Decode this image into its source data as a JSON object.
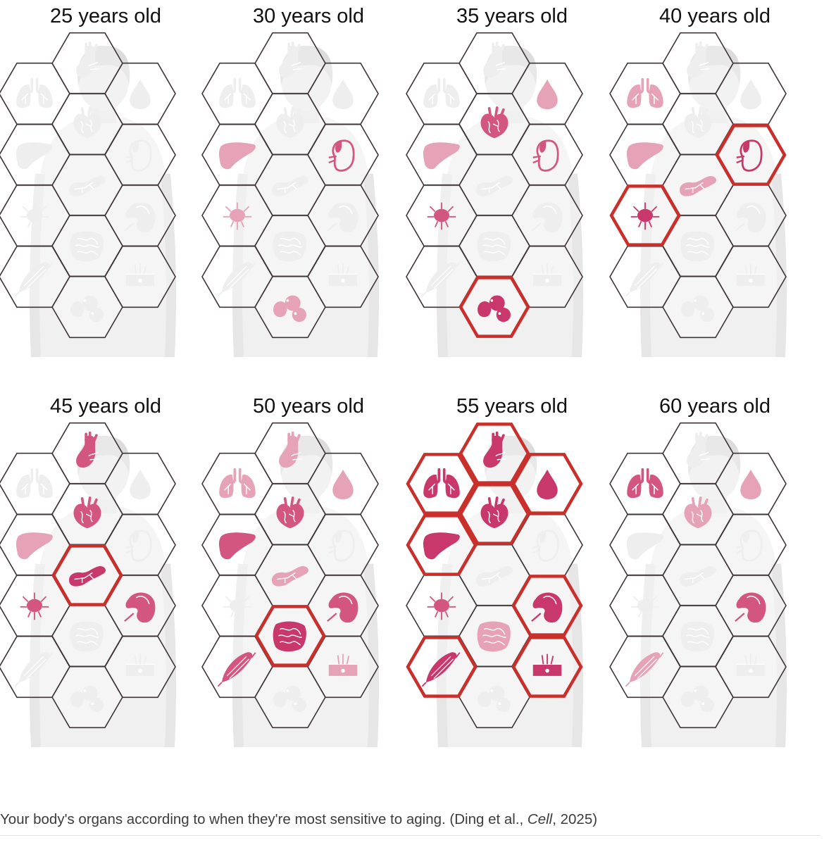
{
  "colors": {
    "hex_border": "#3f3537",
    "highlight_border": "#c9302c",
    "organ_strong": "#c8386a",
    "organ_medium": "#d2567f",
    "organ_light": "#e6a3b7",
    "organ_faint": "#eeeeee",
    "body_silhouette": "#d9d9d9"
  },
  "organ_slots": [
    {
      "slot": "top",
      "icon": "aorta-icon"
    },
    {
      "slot": "left-1",
      "icon": "lung-icon"
    },
    {
      "slot": "center-1",
      "icon": "heart-icon"
    },
    {
      "slot": "right-1",
      "icon": "blood-drop-icon"
    },
    {
      "slot": "left-2",
      "icon": "liver-icon"
    },
    {
      "slot": "center-2",
      "icon": "pancreas-icon"
    },
    {
      "slot": "right-2",
      "icon": "kidney-icon"
    },
    {
      "slot": "left-3",
      "icon": "adrenal-gland-icon"
    },
    {
      "slot": "center-3",
      "icon": "intestine-icon"
    },
    {
      "slot": "right-3",
      "icon": "spleen-icon"
    },
    {
      "slot": "left-4",
      "icon": "muscle-icon"
    },
    {
      "slot": "bottom",
      "icon": "lymph-node-icon"
    },
    {
      "slot": "right-4",
      "icon": "skin-icon"
    }
  ],
  "panels": [
    {
      "title": "25 years old",
      "organs": {
        "top": "faint",
        "left-1": "faint",
        "center-1": "faint",
        "right-1": "faint",
        "left-2": "faint",
        "center-2": "faint",
        "right-2": "faint",
        "left-3": "faint",
        "center-3": "faint",
        "right-3": "faint",
        "left-4": "faint",
        "bottom": "faint",
        "right-4": "faint"
      },
      "highlighted": []
    },
    {
      "title": "30 years old",
      "organs": {
        "top": "faint",
        "left-1": "faint",
        "center-1": "faint",
        "right-1": "faint",
        "left-2": "light",
        "center-2": "faint",
        "right-2": "medium",
        "left-3": "light",
        "center-3": "faint",
        "right-3": "faint",
        "left-4": "faint",
        "bottom": "light",
        "right-4": "faint"
      },
      "highlighted": []
    },
    {
      "title": "35 years old",
      "organs": {
        "top": "faint",
        "left-1": "faint",
        "center-1": "medium",
        "right-1": "light",
        "left-2": "light",
        "center-2": "faint",
        "right-2": "medium",
        "left-3": "medium",
        "center-3": "faint",
        "right-3": "faint",
        "left-4": "faint",
        "bottom": "strong",
        "right-4": "faint"
      },
      "highlighted": [
        "bottom"
      ]
    },
    {
      "title": "40 years old",
      "organs": {
        "top": "faint",
        "left-1": "light",
        "center-1": "faint",
        "right-1": "faint",
        "left-2": "light",
        "center-2": "light",
        "right-2": "strong",
        "left-3": "strong",
        "center-3": "faint",
        "right-3": "faint",
        "left-4": "faint",
        "bottom": "faint",
        "right-4": "faint"
      },
      "highlighted": [
        "right-2",
        "left-3"
      ]
    },
    {
      "title": "45 years old",
      "organs": {
        "top": "medium",
        "left-1": "faint",
        "center-1": "medium",
        "right-1": "faint",
        "left-2": "light",
        "center-2": "strong",
        "right-2": "faint",
        "left-3": "medium",
        "center-3": "faint",
        "right-3": "medium",
        "left-4": "faint",
        "bottom": "faint",
        "right-4": "faint"
      },
      "highlighted": [
        "center-2"
      ]
    },
    {
      "title": "50 years old",
      "organs": {
        "top": "light",
        "left-1": "light",
        "center-1": "medium",
        "right-1": "light",
        "left-2": "medium",
        "center-2": "light",
        "right-2": "faint",
        "left-3": "faint",
        "center-3": "strong",
        "right-3": "medium",
        "left-4": "medium",
        "bottom": "faint",
        "right-4": "light"
      },
      "highlighted": [
        "center-3"
      ]
    },
    {
      "title": "55 years old",
      "organs": {
        "top": "strong",
        "left-1": "strong",
        "center-1": "strong",
        "right-1": "strong",
        "left-2": "strong",
        "center-2": "faint",
        "right-2": "faint",
        "left-3": "medium",
        "center-3": "light",
        "right-3": "strong",
        "left-4": "strong",
        "bottom": "faint",
        "right-4": "strong"
      },
      "highlighted": [
        "top",
        "left-1",
        "center-1",
        "right-1",
        "left-2",
        "right-3",
        "left-4",
        "right-4"
      ]
    },
    {
      "title": "60 years old",
      "organs": {
        "top": "faint",
        "left-1": "medium",
        "center-1": "light",
        "right-1": "light",
        "left-2": "faint",
        "center-2": "faint",
        "right-2": "faint",
        "left-3": "faint",
        "center-3": "faint",
        "right-3": "medium",
        "left-4": "light",
        "bottom": "faint",
        "right-4": "faint"
      },
      "highlighted": []
    }
  ],
  "caption": {
    "text_before": "Your body's organs according to when they're most sensitive to aging. (Ding et al., ",
    "journal": "Cell",
    "text_after": ", 2025)"
  }
}
